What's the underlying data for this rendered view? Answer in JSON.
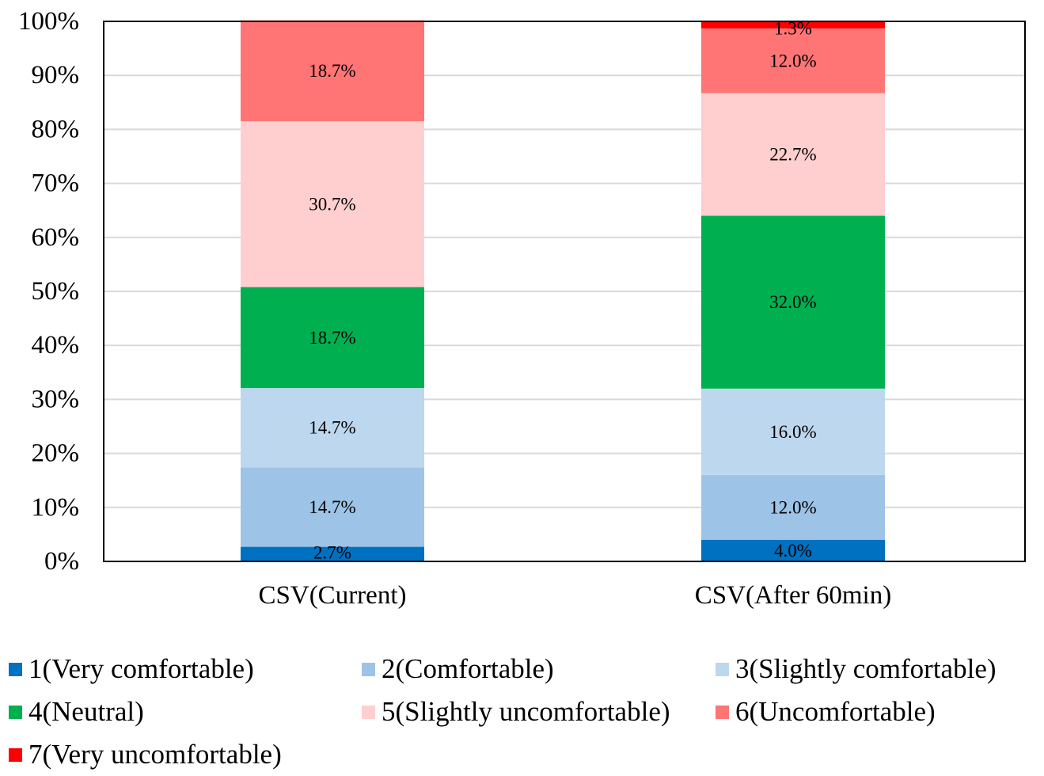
{
  "chart_data": {
    "type": "bar",
    "stacked": true,
    "percent_stacked": true,
    "title": "",
    "xlabel": "",
    "ylabel": "",
    "ylim": [
      0,
      100
    ],
    "y_ticks": [
      0,
      10,
      20,
      30,
      40,
      50,
      60,
      70,
      80,
      90,
      100
    ],
    "y_tick_labels": [
      "0%",
      "10%",
      "20%",
      "30%",
      "40%",
      "50%",
      "60%",
      "70%",
      "80%",
      "90%",
      "100%"
    ],
    "grid": true,
    "legend_position": "bottom",
    "categories": [
      "CSV(Current)",
      "CSV(After 60min)"
    ],
    "series": [
      {
        "name": "1(Very comfortable)",
        "color": "#0070C0",
        "values": [
          2.7,
          4.0
        ],
        "labels": [
          "2.7%",
          "4.0%"
        ]
      },
      {
        "name": "2(Comfortable)",
        "color": "#9DC3E6",
        "values": [
          14.7,
          12.0
        ],
        "labels": [
          "14.7%",
          "12.0%"
        ]
      },
      {
        "name": "3(Slightly comfortable)",
        "color": "#BDD7EE",
        "values": [
          14.7,
          16.0
        ],
        "labels": [
          "14.7%",
          "16.0%"
        ]
      },
      {
        "name": "4(Neutral)",
        "color": "#00B050",
        "values": [
          18.7,
          32.0
        ],
        "labels": [
          "18.7%",
          "32.0%"
        ]
      },
      {
        "name": "5(Slightly uncomfortable)",
        "color": "#FFCFCF",
        "values": [
          30.7,
          22.7
        ],
        "labels": [
          "30.7%",
          "22.7%"
        ]
      },
      {
        "name": "6(Uncomfortable)",
        "color": "#FF7575",
        "values": [
          18.7,
          12.0
        ],
        "labels": [
          "18.7%",
          "12.0%"
        ]
      },
      {
        "name": "7(Very uncomfortable)",
        "color": "#FF0000",
        "values": [
          0,
          1.3
        ],
        "labels": [
          "",
          "1.3%"
        ]
      }
    ]
  }
}
